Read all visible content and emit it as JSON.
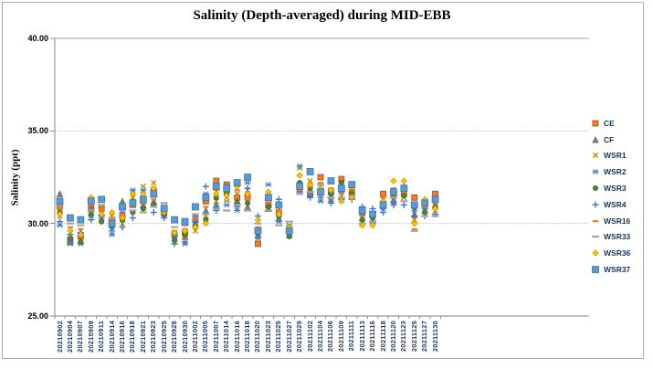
{
  "chart_data": {
    "type": "scatter",
    "title": "Salinity (Depth-averaged) during MID-EBB",
    "xlabel": "",
    "ylabel": "Salinity (ppt)",
    "ylim": [
      25,
      40
    ],
    "y_ticks": [
      {
        "value": 40,
        "label": "40.00"
      },
      {
        "value": 35,
        "label": "35.00"
      },
      {
        "value": 30,
        "label": "30.00"
      },
      {
        "value": 25,
        "label": "25.00"
      }
    ],
    "grid": "horizontal-dotted",
    "legend_position": "right",
    "categories": [
      "20210902",
      "20210904",
      "20210907",
      "20210909",
      "20210911",
      "20210914",
      "20210916",
      "20210918",
      "20210921",
      "20210923",
      "20210925",
      "20210928",
      "20210930",
      "20211002",
      "20211005",
      "20211007",
      "20211014",
      "20211016",
      "20211018",
      "20211020",
      "20211023",
      "20211025",
      "20211027",
      "20211029",
      "20211102",
      "20211104",
      "20211106",
      "20211109",
      "20211111",
      "20211113",
      "20211116",
      "20211118",
      "20211120",
      "20211123",
      "20211125",
      "20211127",
      "20211130"
    ],
    "series": [
      {
        "name": "CE",
        "marker": "square",
        "color": "#ED7D31",
        "stroke": "#9E480E",
        "size": 6,
        "values": [
          30.9,
          29.1,
          29.3,
          30.9,
          30.8,
          30.2,
          30.4,
          31.0,
          31.2,
          31.8,
          30.6,
          29.4,
          29.5,
          30.2,
          31.2,
          32.3,
          32.1,
          31.4,
          31.4,
          28.9,
          31.0,
          30.6,
          29.6,
          31.9,
          31.6,
          32.5,
          31.7,
          32.4,
          31.7,
          30.6,
          30.5,
          31.6,
          31.5,
          31.6,
          31.4,
          31.0,
          31.6
        ]
      },
      {
        "name": "CF",
        "marker": "triangle",
        "color": "#7F7F7F",
        "stroke": "#595959",
        "size": 6.5,
        "values": [
          31.6,
          29.0,
          29.1,
          30.8,
          30.6,
          30.0,
          31.2,
          31.2,
          31.0,
          31.2,
          30.8,
          29.2,
          29.3,
          30.0,
          30.7,
          31.0,
          31.8,
          31.2,
          30.9,
          29.4,
          30.8,
          30.3,
          29.4,
          32.0,
          31.8,
          32.0,
          31.5,
          31.9,
          31.5,
          30.3,
          30.2,
          31.0,
          31.3,
          32.0,
          30.5,
          30.7,
          31.0
        ]
      },
      {
        "name": "WSR1",
        "marker": "x",
        "color": "#BF8F00",
        "stroke": "#BF8F00",
        "size": 7,
        "values": [
          30.4,
          29.5,
          29.6,
          30.6,
          30.9,
          30.4,
          30.0,
          31.4,
          32.0,
          32.2,
          30.9,
          29.0,
          29.2,
          29.6,
          30.4,
          31.2,
          31.4,
          31.6,
          31.8,
          29.7,
          31.3,
          30.8,
          29.8,
          33.0,
          32.3,
          31.6,
          31.3,
          31.5,
          31.9,
          30.1,
          30.4,
          31.3,
          31.8,
          31.4,
          30.2,
          30.5,
          30.7
        ]
      },
      {
        "name": "WSR2",
        "marker": "star",
        "color": "#4A7EBB",
        "stroke": "#4A7EBB",
        "size": 7,
        "values": [
          29.9,
          28.9,
          28.9,
          30.4,
          30.3,
          29.4,
          30.6,
          31.8,
          31.8,
          31.5,
          30.4,
          29.3,
          28.9,
          30.4,
          31.6,
          30.9,
          31.0,
          30.7,
          32.2,
          29.2,
          32.1,
          30.1,
          29.9,
          33.1,
          31.5,
          31.2,
          31.2,
          31.7,
          31.4,
          30.5,
          30.0,
          30.8,
          31.1,
          31.8,
          30.7,
          30.8,
          31.2
        ]
      },
      {
        "name": "WSR3",
        "marker": "circle",
        "color": "#538135",
        "stroke": "#3A5A24",
        "size": 5.5,
        "values": [
          30.6,
          29.2,
          29.0,
          30.5,
          30.1,
          29.8,
          30.2,
          30.6,
          30.8,
          31.0,
          30.5,
          29.1,
          29.4,
          29.9,
          30.2,
          31.4,
          31.6,
          31.1,
          31.1,
          29.5,
          30.9,
          30.4,
          29.3,
          32.2,
          31.9,
          31.8,
          31.6,
          32.2,
          31.6,
          30.2,
          30.3,
          31.1,
          31.6,
          31.5,
          30.9,
          30.6,
          30.9
        ]
      },
      {
        "name": "WSR4",
        "marker": "plus",
        "color": "#4472C4",
        "stroke": "#4472C4",
        "size": 7,
        "values": [
          30.1,
          29.4,
          29.5,
          30.2,
          30.4,
          29.6,
          29.8,
          30.3,
          31.4,
          30.6,
          30.3,
          28.9,
          29.0,
          30.1,
          32.0,
          30.7,
          32.0,
          30.9,
          31.9,
          30.4,
          31.5,
          31.3,
          29.5,
          31.7,
          31.4,
          31.4,
          31.1,
          31.3,
          31.3,
          30.9,
          30.8,
          30.6,
          31.0,
          31.0,
          30.4,
          30.4,
          30.5
        ]
      },
      {
        "name": "WSR16",
        "marker": "dash",
        "color": "#ED7D31",
        "stroke": "#ED7D31",
        "size": 6,
        "values": [
          30.8,
          29.8,
          29.7,
          31.0,
          30.7,
          30.1,
          30.5,
          30.9,
          31.1,
          31.3,
          30.7,
          29.6,
          29.7,
          30.3,
          30.9,
          31.8,
          31.2,
          31.8,
          31.3,
          29.8,
          31.1,
          30.7,
          29.7,
          31.8,
          32.0,
          32.2,
          31.9,
          31.6,
          32.0,
          30.4,
          30.6,
          31.4,
          31.9,
          31.7,
          29.7,
          30.9,
          31.1
        ]
      },
      {
        "name": "WSR33",
        "marker": "dash",
        "color": "#A5A5A5",
        "stroke": "#A5A5A5",
        "size": 8,
        "values": [
          31.0,
          30.0,
          29.9,
          30.7,
          31.0,
          30.3,
          30.8,
          30.7,
          30.6,
          30.9,
          31.1,
          29.8,
          29.9,
          30.5,
          30.5,
          30.8,
          30.7,
          31.0,
          30.7,
          30.0,
          30.7,
          29.9,
          30.1,
          31.6,
          31.7,
          32.1,
          31.4,
          31.4,
          31.5,
          30.0,
          30.1,
          30.9,
          31.4,
          31.2,
          29.6,
          30.4,
          30.4
        ]
      },
      {
        "name": "WSR36",
        "marker": "diamond",
        "color": "#FFC000",
        "stroke": "#BF8F00",
        "size": 6.5,
        "values": [
          30.5,
          29.6,
          29.4,
          31.4,
          30.5,
          30.6,
          30.3,
          31.6,
          31.6,
          31.9,
          30.6,
          29.5,
          29.6,
          29.8,
          30.0,
          31.6,
          31.5,
          32.0,
          31.6,
          30.2,
          31.7,
          30.5,
          29.8,
          32.6,
          32.1,
          31.9,
          31.8,
          31.2,
          31.4,
          29.9,
          29.9,
          31.2,
          32.3,
          32.3,
          30.0,
          31.3,
          30.8
        ]
      },
      {
        "name": "WSR37",
        "marker": "square",
        "color": "#5B9BD5",
        "stroke": "#41719C",
        "size": 7,
        "values": [
          31.2,
          30.3,
          30.2,
          31.2,
          31.3,
          30.0,
          30.9,
          31.1,
          31.3,
          31.6,
          30.8,
          30.2,
          30.1,
          30.9,
          31.4,
          32.0,
          31.9,
          32.2,
          32.5,
          29.6,
          31.4,
          31.0,
          29.6,
          32.0,
          32.8,
          31.7,
          32.3,
          31.9,
          32.1,
          30.7,
          30.5,
          31.0,
          31.7,
          31.9,
          31.0,
          31.1,
          31.3
        ]
      }
    ]
  }
}
